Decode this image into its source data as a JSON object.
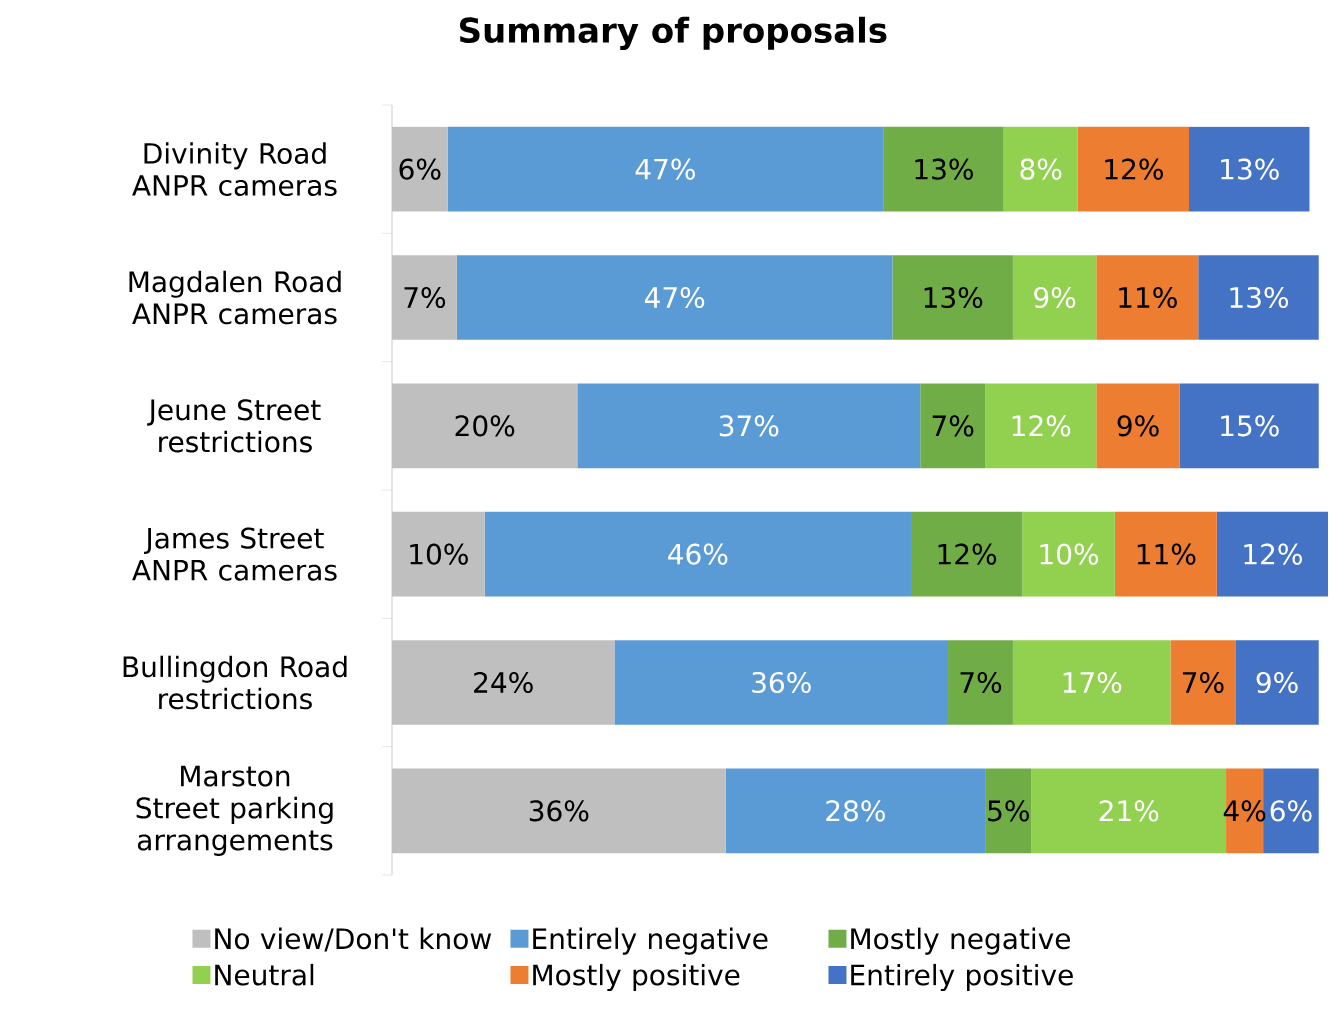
{
  "chart_data": {
    "type": "bar",
    "orientation": "horizontal",
    "stacked": true,
    "title": "Summary of proposals",
    "categories": [
      "Divinity Road ANPR cameras",
      "Magdalen Road ANPR cameras",
      "Jeune Street restrictions",
      "James Street ANPR cameras",
      "Bullingdon Road restrictions",
      "Marston Street parking arrangements"
    ],
    "series": [
      {
        "name": "No view/Don't know",
        "color": "#bfbfbf",
        "values": [
          6,
          7,
          20,
          10,
          24,
          36
        ],
        "value_labels": [
          "6%",
          "7%",
          "20%",
          "10%",
          "24%",
          "36%"
        ]
      },
      {
        "name": "Entirely negative",
        "color": "#5b9bd5",
        "values": [
          47,
          47,
          37,
          46,
          36,
          28
        ],
        "value_labels": [
          "47%",
          "47%",
          "37%",
          "46%",
          "36%",
          "28%"
        ]
      },
      {
        "name": "Mostly negative",
        "color": "#70ad47",
        "values": [
          13,
          13,
          7,
          12,
          7,
          5
        ],
        "value_labels": [
          "13%",
          "13%",
          "7%",
          "12%",
          "7%",
          "5%"
        ]
      },
      {
        "name": "Neutral",
        "color": "#92d050",
        "values": [
          8,
          9,
          12,
          10,
          17,
          21
        ],
        "value_labels": [
          "8%",
          "9%",
          "12%",
          "10%",
          "17%",
          "21%"
        ]
      },
      {
        "name": "Mostly positive",
        "color": "#ed7d31",
        "values": [
          12,
          11,
          9,
          11,
          7,
          4
        ],
        "value_labels": [
          "12%",
          "11%",
          "9%",
          "11%",
          "7%",
          "4%"
        ]
      },
      {
        "name": "Entirely positive",
        "color": "#4472c4",
        "values": [
          13,
          13,
          15,
          12,
          9,
          6
        ],
        "value_labels": [
          "13%",
          "13%",
          "15%",
          "12%",
          "9%",
          "6%"
        ]
      }
    ],
    "legend": "bottom"
  }
}
